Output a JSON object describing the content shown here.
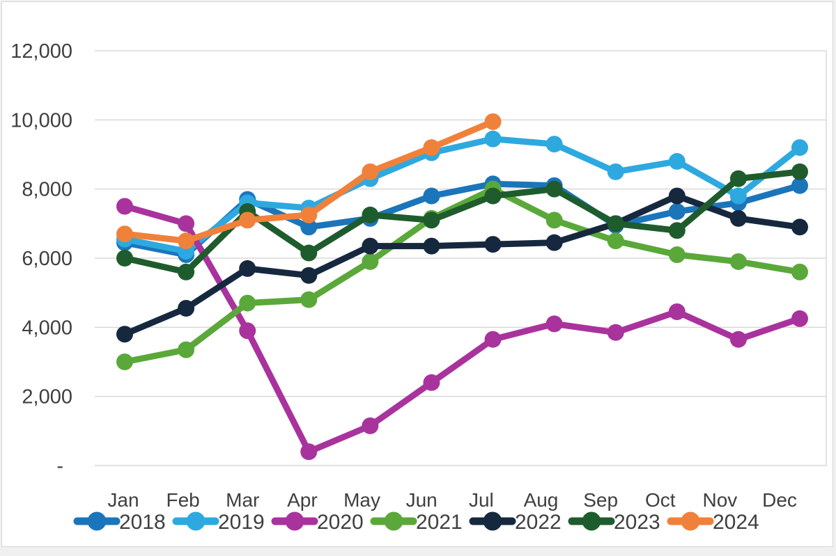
{
  "chart_data": {
    "type": "line",
    "title": "",
    "x_labels": [
      "Jan",
      "Feb",
      "Mar",
      "Apr",
      "May",
      "Jun",
      "Jul",
      "Aug",
      "Sep",
      "Oct",
      "Nov",
      "Dec"
    ],
    "y_axis": {
      "min": 0,
      "max": 12000,
      "step": 2000,
      "tick_labels": [
        "-",
        "2,000",
        "4,000",
        "6,000",
        "8,000",
        "10,000",
        "12,000"
      ]
    },
    "grid": true,
    "legend_position": "bottom",
    "series": [
      {
        "name": "2018",
        "color": "#1b75bb",
        "values": [
          6450,
          6100,
          7700,
          6900,
          7150,
          7800,
          8150,
          8100,
          6950,
          7350,
          7600,
          8100
        ]
      },
      {
        "name": "2019",
        "color": "#2ea9e0",
        "values": [
          6550,
          6200,
          7600,
          7450,
          8300,
          9050,
          9450,
          9300,
          8500,
          8800,
          7800,
          9200
        ]
      },
      {
        "name": "2020",
        "color": "#a9339d",
        "values": [
          7500,
          7000,
          3900,
          400,
          1150,
          2400,
          3650,
          4100,
          3850,
          4450,
          3650,
          4250
        ]
      },
      {
        "name": "2021",
        "color": "#5ba83a",
        "values": [
          3000,
          3350,
          4700,
          4800,
          5900,
          7150,
          8000,
          7100,
          6500,
          6100,
          5900,
          5600
        ]
      },
      {
        "name": "2022",
        "color": "#16283e",
        "values": [
          3800,
          4550,
          5700,
          5500,
          6350,
          6350,
          6400,
          6450,
          7000,
          7800,
          7150,
          6900
        ]
      },
      {
        "name": "2023",
        "color": "#1f5c2d",
        "values": [
          6000,
          5600,
          7350,
          6150,
          7250,
          7100,
          7800,
          8000,
          7000,
          6800,
          8300,
          8500
        ]
      },
      {
        "name": "2024",
        "color": "#f0813a",
        "values": [
          6700,
          6500,
          7100,
          7250,
          8500,
          9200,
          9950
        ]
      }
    ]
  },
  "style": {
    "grid_color": "#d8d8d8",
    "text_color": "#3f3f3f",
    "background": "#ffffff",
    "page_background": "#f0f0f1",
    "card_border": "#d5d5d5"
  }
}
